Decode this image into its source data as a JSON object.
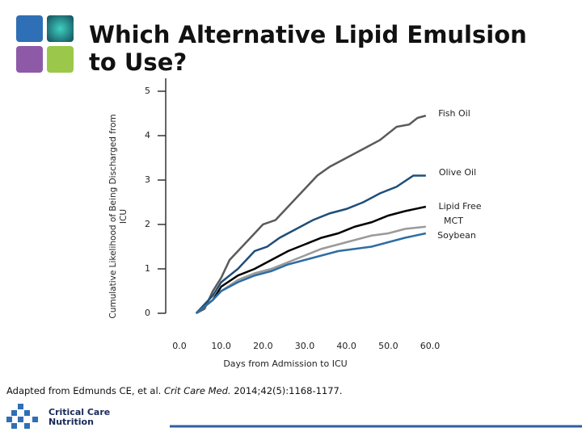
{
  "header": {
    "title": "Which Alternative Lipid Emulsion to Use?"
  },
  "chart_data": {
    "type": "line",
    "ylabel": "Cumulative Likelihood of Being Discharged from ICU",
    "xlabel": "Days from Admission to ICU",
    "xlim": [
      0,
      60
    ],
    "ylim": [
      0,
      5
    ],
    "xticks": [
      {
        "value": 0,
        "label": "0.0"
      },
      {
        "value": 10,
        "label": "10.0"
      },
      {
        "value": 20,
        "label": "20.0"
      },
      {
        "value": 30,
        "label": "30.0"
      },
      {
        "value": 40,
        "label": "40.0"
      },
      {
        "value": 50,
        "label": "50.0"
      },
      {
        "value": 60,
        "label": "60.0"
      }
    ],
    "yticks": [
      0,
      1,
      2,
      3,
      4,
      5
    ],
    "series": [
      {
        "name": "Fish Oil",
        "color": "#5a5a5a",
        "x": [
          4,
          6,
          8,
          10,
          12,
          15,
          18,
          20,
          23,
          25,
          28,
          30,
          33,
          36,
          40,
          44,
          48,
          52,
          55,
          57,
          59
        ],
        "values": [
          0,
          0.1,
          0.5,
          0.8,
          1.2,
          1.5,
          1.8,
          2.0,
          2.1,
          2.3,
          2.6,
          2.8,
          3.1,
          3.3,
          3.5,
          3.7,
          3.9,
          4.2,
          4.25,
          4.4,
          4.45
        ]
      },
      {
        "name": "Olive Oil",
        "color": "#1f4e79",
        "x": [
          4,
          8,
          10,
          14,
          18,
          21,
          24,
          28,
          32,
          36,
          40,
          44,
          48,
          52,
          56,
          59
        ],
        "values": [
          0,
          0.4,
          0.7,
          1.0,
          1.4,
          1.5,
          1.7,
          1.9,
          2.1,
          2.25,
          2.35,
          2.5,
          2.7,
          2.85,
          3.1,
          3.1
        ]
      },
      {
        "name": "Lipid Free",
        "color": "#000000",
        "x": [
          4,
          8,
          10,
          14,
          18,
          22,
          26,
          30,
          34,
          38,
          42,
          46,
          50,
          54,
          59
        ],
        "values": [
          0,
          0.3,
          0.6,
          0.85,
          1.0,
          1.2,
          1.4,
          1.55,
          1.7,
          1.8,
          1.95,
          2.05,
          2.2,
          2.3,
          2.4
        ]
      },
      {
        "name": "MCT",
        "color": "#9a9a9a",
        "x": [
          4,
          8,
          10,
          14,
          18,
          22,
          26,
          30,
          34,
          38,
          42,
          46,
          50,
          54,
          59
        ],
        "values": [
          0,
          0.3,
          0.5,
          0.75,
          0.9,
          1.0,
          1.15,
          1.3,
          1.45,
          1.55,
          1.65,
          1.75,
          1.8,
          1.9,
          1.95
        ]
      },
      {
        "name": "Soybean",
        "color": "#2e6da4",
        "x": [
          4,
          8,
          10,
          14,
          18,
          22,
          26,
          30,
          34,
          38,
          42,
          46,
          50,
          54,
          59
        ],
        "values": [
          0,
          0.3,
          0.5,
          0.7,
          0.85,
          0.95,
          1.1,
          1.2,
          1.3,
          1.4,
          1.45,
          1.5,
          1.6,
          1.7,
          1.8
        ]
      }
    ]
  },
  "citation": {
    "prefix": "Adapted from Edmunds CE, et al. ",
    "journal": "Crit Care Med.",
    "suffix": " 2014;42(5):1168-1177."
  },
  "logo": {
    "line1": "Critical Care",
    "line2": "Nutrition"
  }
}
